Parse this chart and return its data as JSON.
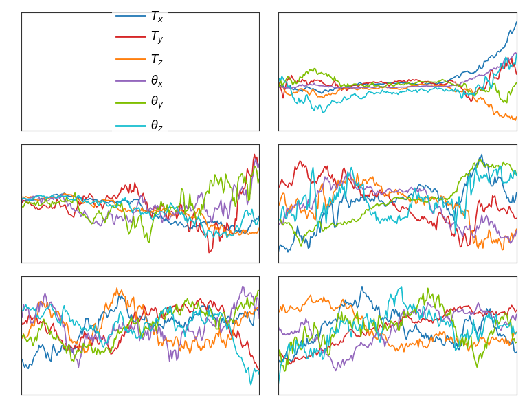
{
  "colors": {
    "Tx": "#1f77b4",
    "Ty": "#d62728",
    "Tz": "#ff7f0e",
    "thx": "#9467bd",
    "thy": "#7fbf00",
    "thz": "#17becf"
  },
  "legend_labels": [
    "$T_x$",
    "$T_y$",
    "$T_z$",
    "$\\theta_x$",
    "$\\theta_y$",
    "$\\theta_z$"
  ],
  "n_points": 200,
  "background_color": "#ffffff",
  "grid_color": "#aaaaaa",
  "line_width": 1.2
}
